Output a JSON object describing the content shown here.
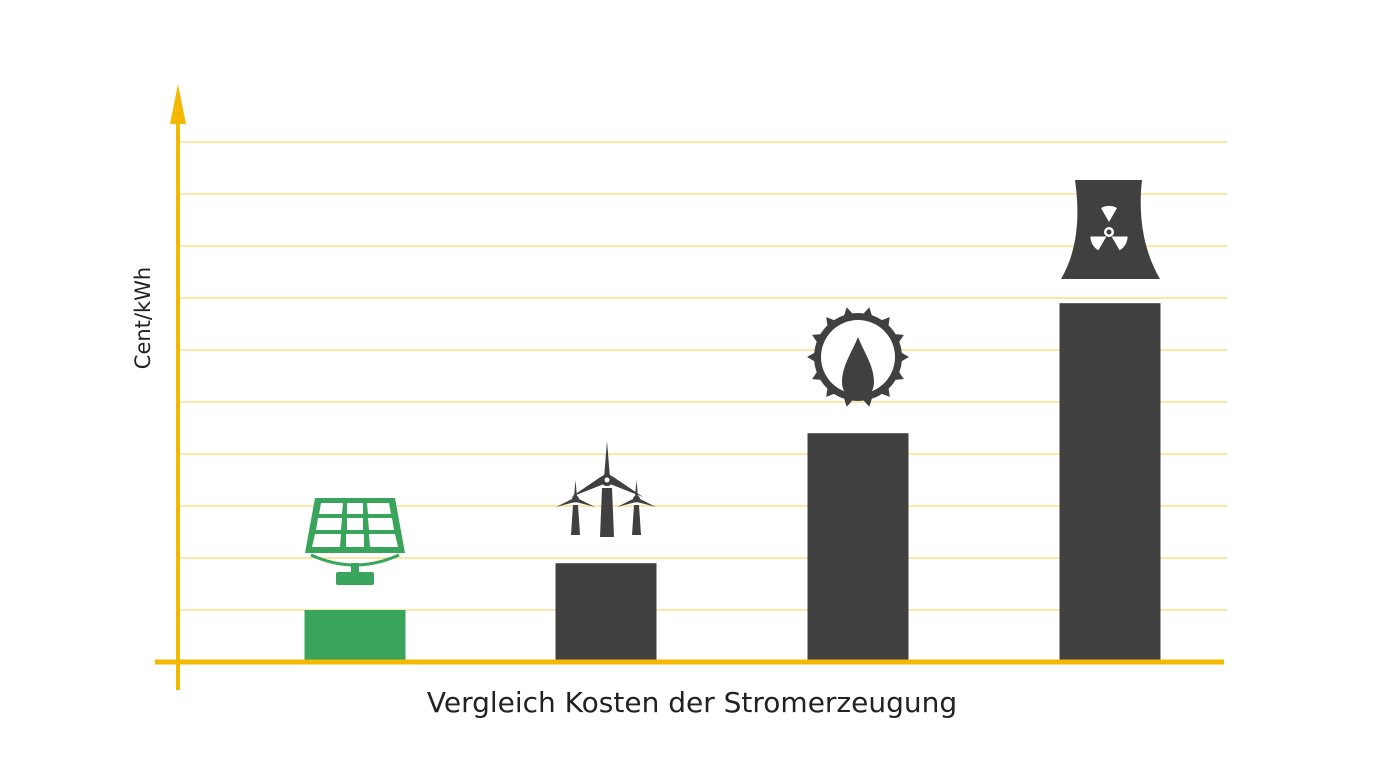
{
  "chart_data": {
    "type": "bar",
    "xlabel": "Vergleich Kosten der Stromerzeugung",
    "ylabel": "Cent/kWh",
    "ylim": [
      0,
      10
    ],
    "grid": true,
    "categories": [
      "",
      "",
      "",
      ""
    ],
    "values": [
      1.0,
      1.9,
      4.4,
      6.9
    ],
    "category_icons": [
      "solar-panel-icon",
      "wind-turbines-icon",
      "gas-flame-icon",
      "nuclear-cooling-tower-icon"
    ],
    "bar_colors": [
      "#38a45c",
      "#404040",
      "#404040",
      "#404040"
    ]
  },
  "colors": {
    "axis": "#f5b800",
    "grid": "#f7e08a",
    "solar": "#38a45c",
    "dark": "#404040"
  }
}
